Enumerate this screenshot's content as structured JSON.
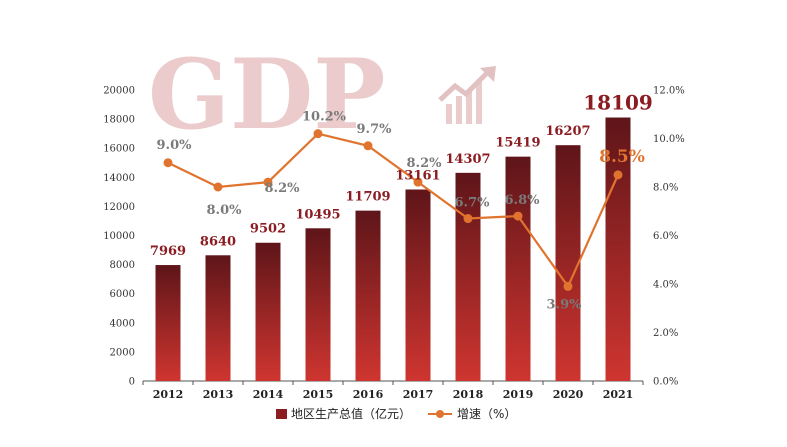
{
  "watermark_text": "GDP",
  "chart_data": {
    "type": "bar",
    "categories": [
      "2012",
      "2013",
      "2014",
      "2015",
      "2016",
      "2017",
      "2018",
      "2019",
      "2020",
      "2021"
    ],
    "series": [
      {
        "name": "地区生产总值（亿元）",
        "type": "bar",
        "axis": "left",
        "values": [
          7969,
          8640,
          9502,
          10495,
          11709,
          13161,
          14307,
          15419,
          16207,
          18109
        ],
        "labels": [
          "7969",
          "8640",
          "9502",
          "10495",
          "11709",
          "13161",
          "14307",
          "15419",
          "16207",
          "18109"
        ]
      },
      {
        "name": "增速（%）",
        "type": "line",
        "axis": "right",
        "values": [
          9.0,
          8.0,
          8.2,
          10.2,
          9.7,
          8.2,
          6.7,
          6.8,
          3.9,
          8.5
        ],
        "labels": [
          "9.0%",
          "8.0%",
          "8.2%",
          "10.2%",
          "9.7%",
          "8.2%",
          "6.7%",
          "6.8%",
          "3.9%",
          "8.5%"
        ]
      }
    ],
    "y_left": {
      "min": 0,
      "max": 20000,
      "ticks": [
        "0",
        "2000",
        "4000",
        "6000",
        "8000",
        "10000",
        "12000",
        "14000",
        "16000",
        "18000",
        "20000"
      ]
    },
    "y_right": {
      "min": 0,
      "max": 12,
      "ticks": [
        "0.0%",
        "2.0%",
        "4.0%",
        "6.0%",
        "8.0%",
        "10.0%",
        "12.0%"
      ]
    },
    "legend_position": "bottom",
    "grid": false,
    "colors": {
      "bar_top": "#6e1a1f",
      "bar_bottom": "#c8322f",
      "line": "#e0742f",
      "bar_label": "#8a1c22",
      "rate_label": "#7a7a7a"
    }
  }
}
